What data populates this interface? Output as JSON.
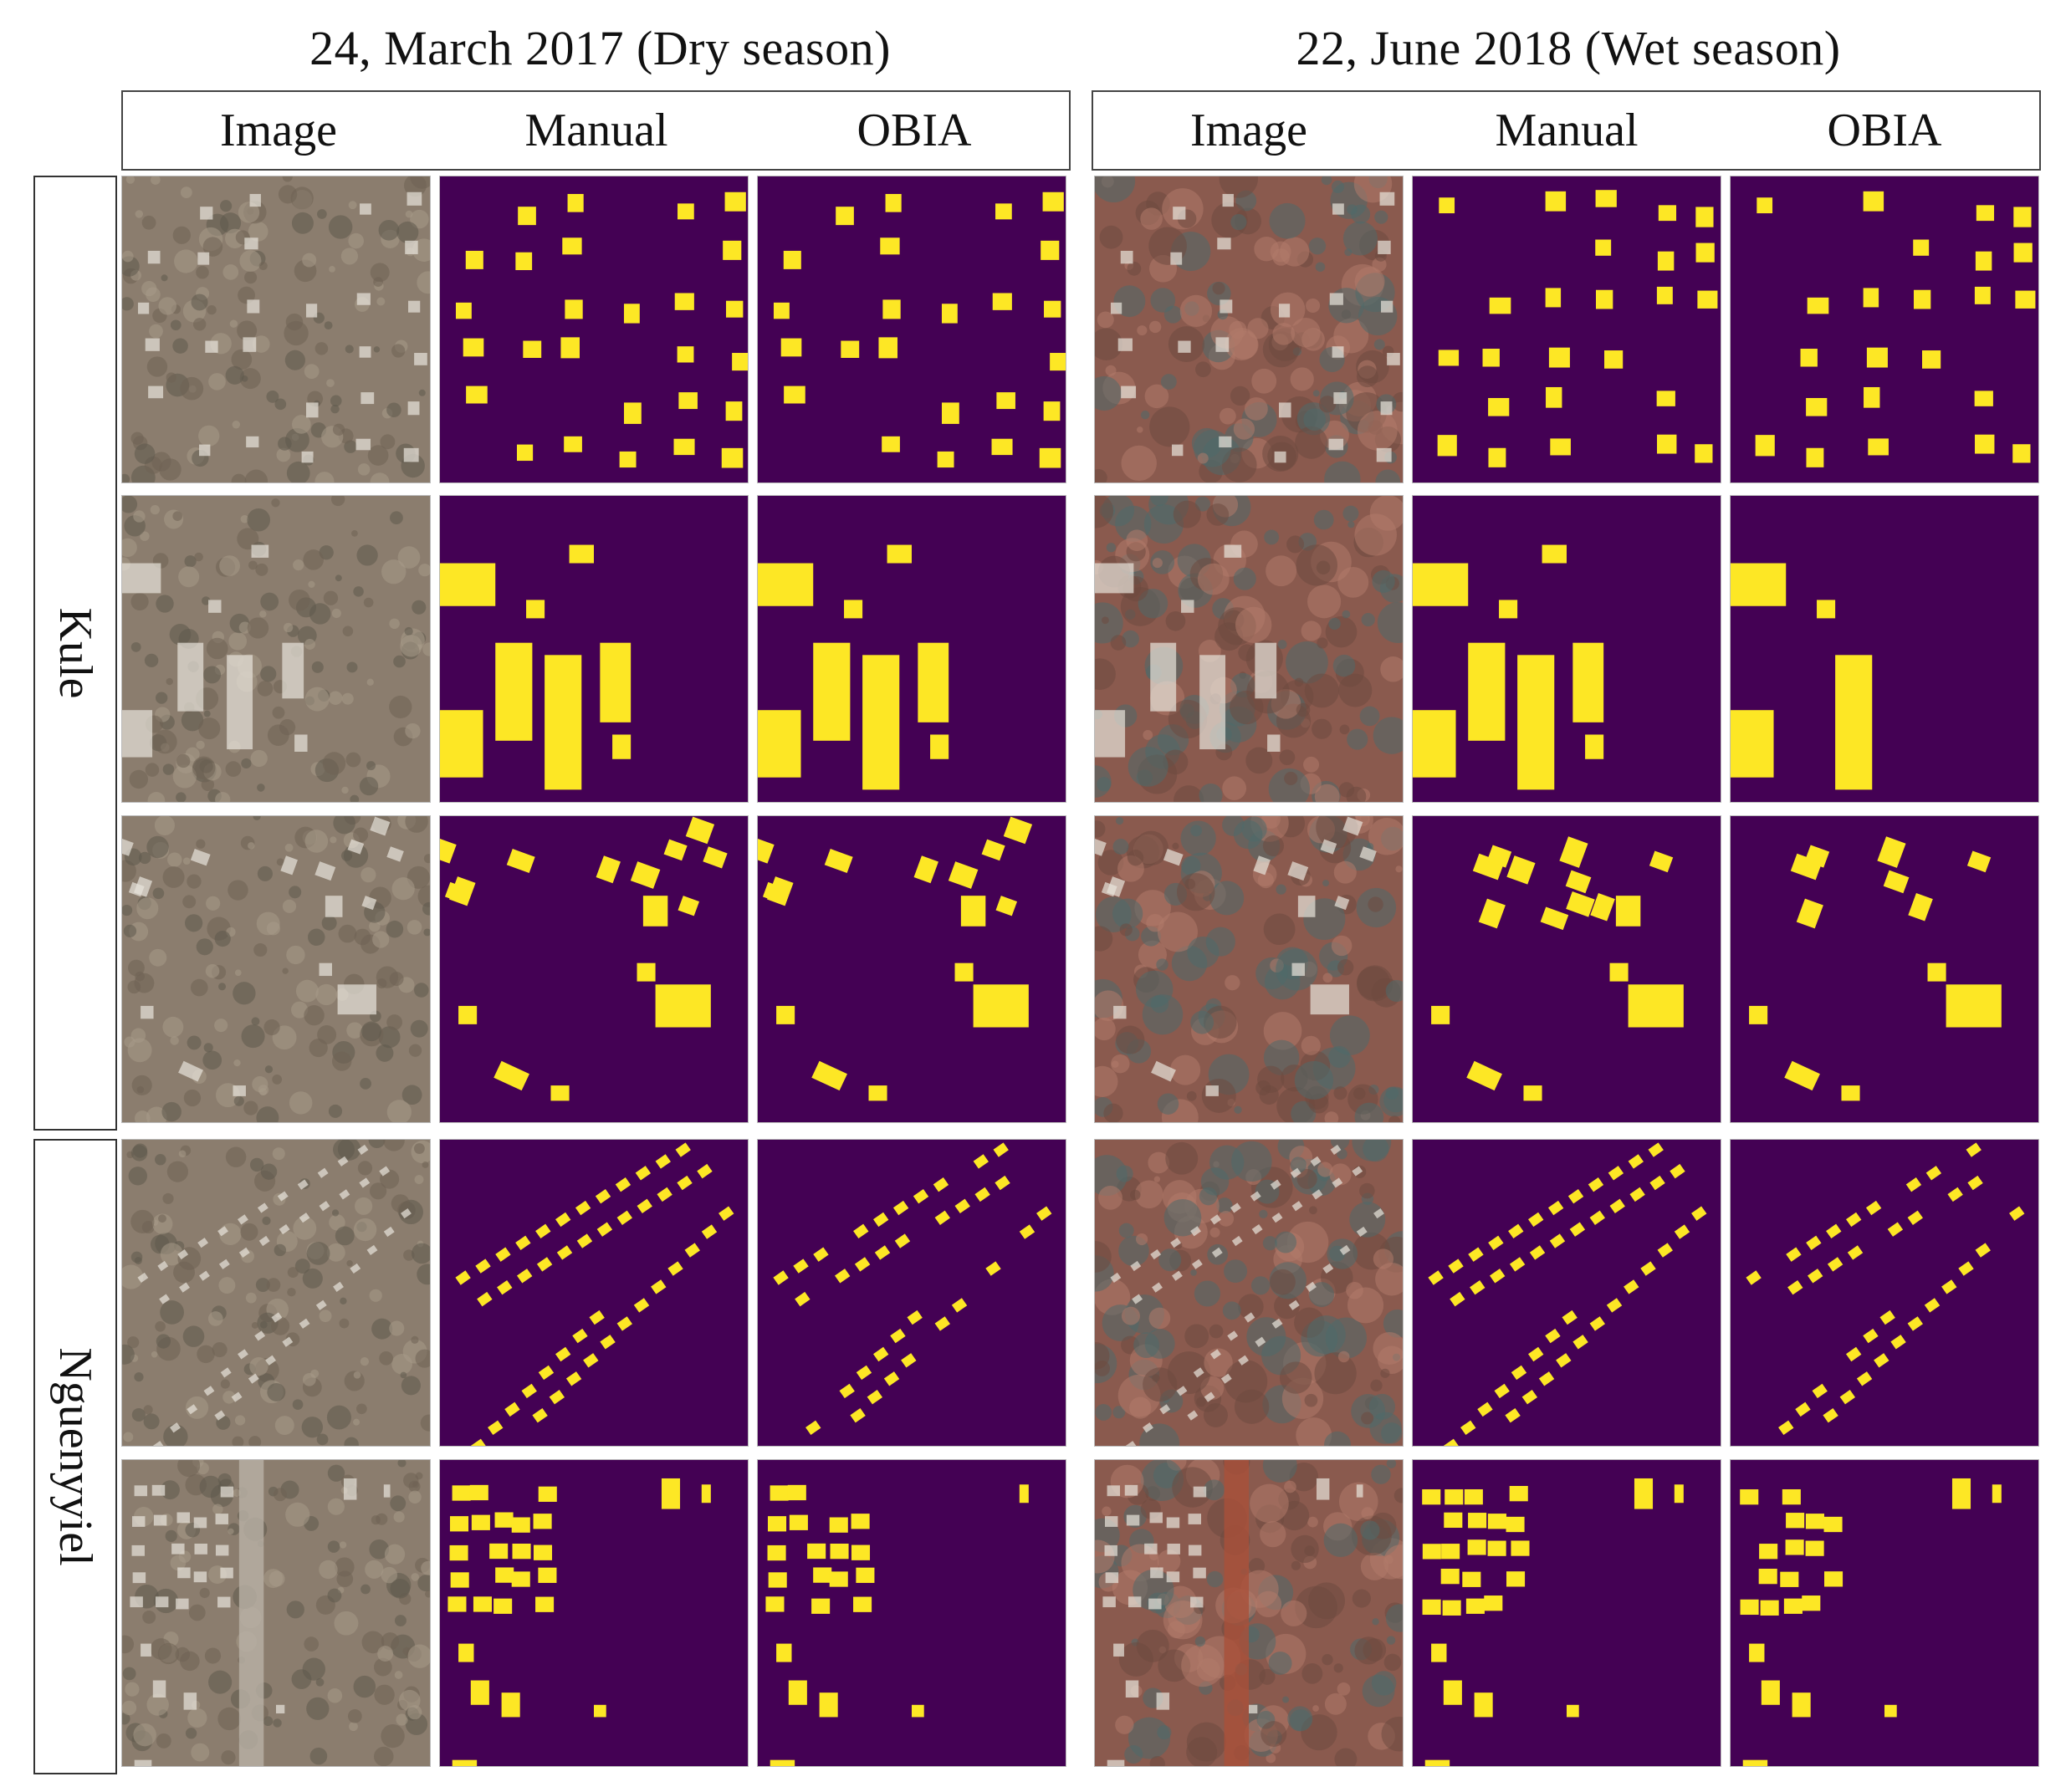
{
  "periods": [
    {
      "title": "24, March 2017 (Dry season)",
      "columns": [
        "Image",
        "Manual",
        "OBIA"
      ]
    },
    {
      "title": "22, June 2018 (Wet season)",
      "columns": [
        "Image",
        "Manual",
        "OBIA"
      ]
    }
  ],
  "sites": [
    "Kule",
    "Nguenyyiel"
  ],
  "colors": {
    "mask_background": "#440154",
    "building": "#fde725",
    "frame": "#444444"
  }
}
